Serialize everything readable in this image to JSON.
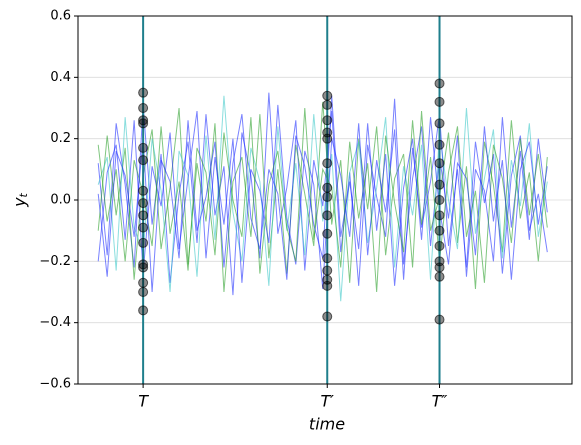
{
  "chart_data": {
    "type": "line",
    "xlabel": "time",
    "ylabel": {
      "base": "y",
      "subscript": "t"
    },
    "xlim": [
      -4.5,
      105.5
    ],
    "ylim": [
      -0.6,
      0.6
    ],
    "xticks": [
      {
        "value": 10,
        "label": "T"
      },
      {
        "value": 51,
        "label": "T′"
      },
      {
        "value": 76,
        "label": "T″"
      }
    ],
    "yticks": [
      {
        "value": -0.6,
        "label": "−0.6"
      },
      {
        "value": -0.4,
        "label": "−0.4"
      },
      {
        "value": -0.2,
        "label": "−0.2"
      },
      {
        "value": 0,
        "label": "0.0"
      },
      0.2,
      0.4,
      0.6
    ],
    "grid": true,
    "vline_color": "#1f7f8c",
    "marker_color": "#000000",
    "x": [
      0,
      2,
      4,
      6,
      8,
      10,
      12,
      14,
      16,
      18,
      20,
      22,
      24,
      26,
      28,
      30,
      32,
      34,
      36,
      38,
      40,
      42,
      44,
      46,
      48,
      50,
      52,
      54,
      56,
      58,
      60,
      62,
      64,
      66,
      68,
      70,
      72,
      74,
      76,
      78,
      80,
      82,
      84,
      86,
      88,
      90,
      92,
      94,
      96,
      98,
      100
    ],
    "series": [
      {
        "color": "#1f2fff",
        "values": [
          0.12,
          -0.18,
          0.25,
          0.05,
          -0.22,
          0.31,
          -0.08,
          0.15,
          -0.27,
          0.02,
          0.19,
          -0.14,
          0.28,
          -0.05,
          0.11,
          -0.31,
          0.22,
          0.08,
          -0.19,
          0.35,
          -0.11,
          0.04,
          0.26,
          -0.23,
          0.13,
          -0.02,
          0.29,
          -0.17,
          0.09,
          -0.28,
          0.18,
          0.01,
          -0.12,
          0.33,
          -0.21,
          0.07,
          0.24,
          -0.15,
          0.14,
          -0.06,
          0.21,
          -0.25,
          0.1,
          0.03,
          -0.2,
          0.27,
          -0.09,
          0.16,
          -0.13,
          0.2,
          -0.04
        ]
      },
      {
        "color": "#2ca02c",
        "values": [
          -0.1,
          0.21,
          -0.05,
          0.17,
          -0.26,
          0.08,
          0.23,
          -0.16,
          0.04,
          0.3,
          -0.21,
          0.12,
          -0.07,
          0.25,
          -0.3,
          0.06,
          0.14,
          -0.12,
          0.28,
          -0.19,
          0.1,
          -0.24,
          0.18,
          0.02,
          -0.15,
          0.32,
          -0.08,
          0.13,
          -0.27,
          0.2,
          -0.03,
          0.24,
          -0.18,
          0.07,
          0.15,
          -0.22,
          0.29,
          -0.1,
          0.01,
          0.22,
          -0.14,
          0.11,
          -0.29,
          0.19,
          0.05,
          -0.17,
          0.26,
          -0.06,
          0.09,
          -0.2,
          0.14
        ]
      },
      {
        "color": "#3cc8c8",
        "values": [
          0.05,
          0.14,
          -0.23,
          0.27,
          -0.09,
          -0.17,
          0.2,
          0.03,
          -0.3,
          0.16,
          0.08,
          -0.25,
          0.21,
          -0.13,
          0.34,
          -0.04,
          -0.2,
          0.17,
          0.06,
          -0.28,
          0.24,
          -0.1,
          0.12,
          -0.18,
          0.28,
          -0.07,
          0.15,
          -0.33,
          0.09,
          0.19,
          -0.14,
          0.04,
          0.27,
          -0.22,
          0.11,
          -0.05,
          0.18,
          -0.26,
          0.22,
          0.0,
          -0.16,
          0.3,
          -0.11,
          0.07,
          0.23,
          -0.19,
          0.13,
          -0.02,
          0.25,
          -0.12,
          0.06
        ]
      },
      {
        "color": "#1f2fff",
        "values": [
          -0.2,
          0.09,
          0.18,
          -0.13,
          0.26,
          -0.24,
          0.11,
          -0.02,
          0.22,
          -0.16,
          0.07,
          0.29,
          -0.19,
          0.14,
          -0.08,
          0.2,
          -0.27,
          0.1,
          0.03,
          -0.14,
          0.31,
          -0.06,
          -0.21,
          0.16,
          0.05,
          -0.29,
          0.2,
          0.08,
          -0.12,
          0.25,
          -0.18,
          0.13,
          -0.04,
          0.23,
          -0.26,
          0.17,
          -0.09,
          0.06,
          0.28,
          -0.15,
          0.1,
          -0.22,
          0.19,
          -0.01,
          0.15,
          -0.24,
          0.08,
          0.21,
          -0.1,
          0.02,
          -0.17
        ]
      },
      {
        "color": "#2ca02c",
        "values": [
          0.18,
          -0.07,
          0.1,
          -0.2,
          0.13,
          0.02,
          -0.15,
          0.24,
          -0.11,
          0.06,
          -0.23,
          0.17,
          0.09,
          -0.18,
          0.22,
          0.0,
          -0.12,
          0.27,
          -0.24,
          0.05,
          0.16,
          -0.09,
          -0.2,
          0.3,
          -0.13,
          0.1,
          0.04,
          -0.22,
          0.19,
          -0.06,
          0.12,
          -0.3,
          0.21,
          -0.01,
          -0.17,
          0.26,
          -0.08,
          0.14,
          -0.2,
          0.09,
          0.24,
          -0.12,
          0.03,
          -0.27,
          0.18,
          0.07,
          -0.14,
          0.2,
          -0.05,
          0.15,
          -0.09
        ]
      },
      {
        "color": "#1f2fff",
        "values": [
          0.02,
          -0.25,
          0.16,
          0.08,
          -0.12,
          0.2,
          -0.3,
          0.13,
          0.06,
          -0.19,
          0.26,
          -0.1,
          0.01,
          0.19,
          -0.22,
          0.12,
          0.28,
          -0.06,
          -0.16,
          0.1,
          0.02,
          -0.26,
          0.21,
          0.11,
          -0.08,
          -0.19,
          0.34,
          -0.12,
          0.06,
          -0.16,
          0.25,
          -0.1,
          0.15,
          -0.28,
          0.04,
          0.2,
          -0.13,
          0.27,
          -0.03,
          -0.21,
          0.12,
          0.07,
          -0.18,
          0.24,
          -0.07,
          0.13,
          -0.26,
          0.1,
          0.19,
          -0.08,
          0.11
        ]
      }
    ],
    "markers": [
      [
        0.35,
        0.3,
        0.26,
        0.25,
        0.17,
        0.13,
        0.03,
        -0.01,
        -0.05,
        -0.09,
        -0.14,
        -0.21,
        -0.22,
        -0.27,
        -0.3,
        -0.36
      ],
      [
        0.34,
        0.31,
        0.26,
        0.22,
        0.2,
        0.12,
        0.04,
        0.01,
        -0.05,
        -0.11,
        -0.19,
        -0.23,
        -0.26,
        -0.28,
        -0.38
      ],
      [
        0.38,
        0.32,
        0.25,
        0.18,
        0.12,
        0.05,
        0,
        -0.05,
        -0.1,
        -0.15,
        -0.2,
        -0.22,
        -0.25,
        -0.39
      ]
    ]
  }
}
